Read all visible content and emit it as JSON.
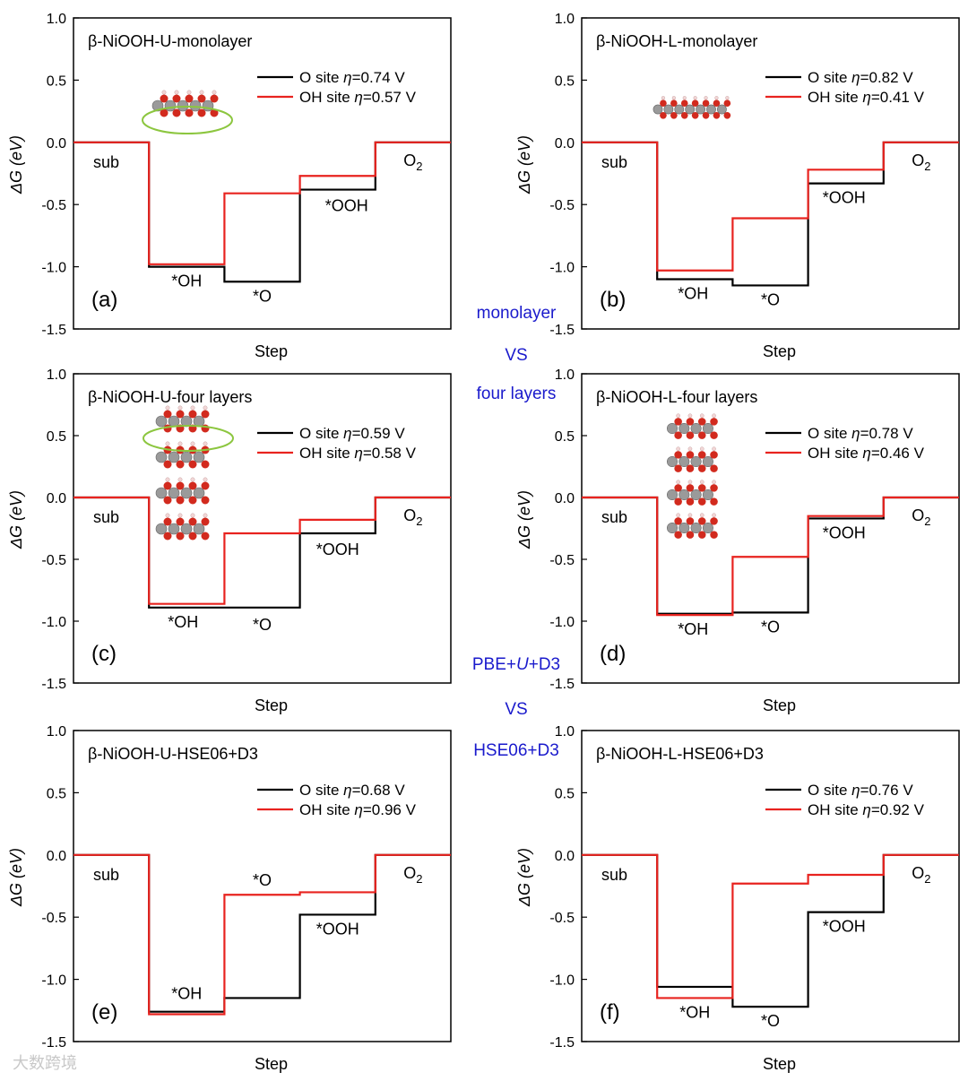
{
  "figure": {
    "center_labels": [
      "monolayer",
      "VS",
      "four layers",
      "PBE+U+D3",
      "VS",
      "HSE06+D3"
    ],
    "watermark": "大数跨境",
    "colors": {
      "o_site": "#000000",
      "oh_site": "#e8231f",
      "center_text": "#1a1acc",
      "ellipse": "#8cc63f"
    }
  },
  "chart_data": [
    {
      "type": "line",
      "panel": "(a)",
      "title": "β-NiOOH-U-monolayer",
      "xlabel": "Step",
      "ylabel": "ΔG (eV)",
      "ylim": [
        -1.5,
        1.0
      ],
      "yticks": [
        "1.0",
        "0.5",
        "0.0",
        "-0.5",
        "-1.0",
        "-1.5"
      ],
      "steps": [
        "sub",
        "*OH",
        "*O",
        "*OOH",
        "O2"
      ],
      "legend": [
        {
          "prefix": "O site ",
          "eta": "η",
          "suffix": "=0.74 V"
        },
        {
          "prefix": "OH site ",
          "eta": "η",
          "suffix": "=0.57 V"
        }
      ],
      "series": [
        {
          "name": "O site",
          "values": [
            0.0,
            -1.0,
            -1.12,
            -0.38,
            0.0
          ]
        },
        {
          "name": "OH site",
          "values": [
            0.0,
            -0.98,
            -0.41,
            -0.27,
            0.0
          ]
        }
      ]
    },
    {
      "type": "line",
      "panel": "(b)",
      "title": "β-NiOOH-L-monolayer",
      "xlabel": "Step",
      "ylabel": "ΔG (eV)",
      "ylim": [
        -1.5,
        1.0
      ],
      "yticks": [
        "1.0",
        "0.5",
        "0.0",
        "-0.5",
        "-1.0",
        "-1.5"
      ],
      "steps": [
        "sub",
        "*OH",
        "*O",
        "*OOH",
        "O2"
      ],
      "legend": [
        {
          "prefix": "O site ",
          "eta": "η",
          "suffix": "=0.82 V"
        },
        {
          "prefix": "OH site ",
          "eta": "η",
          "suffix": "=0.41 V"
        }
      ],
      "series": [
        {
          "name": "O site",
          "values": [
            0.0,
            -1.1,
            -1.15,
            -0.33,
            0.0
          ]
        },
        {
          "name": "OH site",
          "values": [
            0.0,
            -1.03,
            -0.61,
            -0.22,
            0.0
          ]
        }
      ]
    },
    {
      "type": "line",
      "panel": "(c)",
      "title": "β-NiOOH-U-four layers",
      "xlabel": "Step",
      "ylabel": "ΔG (eV)",
      "ylim": [
        -1.5,
        1.0
      ],
      "yticks": [
        "1.0",
        "0.5",
        "0.0",
        "-0.5",
        "-1.0",
        "-1.5"
      ],
      "steps": [
        "sub",
        "*OH",
        "*O",
        "*OOH",
        "O2"
      ],
      "legend": [
        {
          "prefix": "O site ",
          "eta": "η",
          "suffix": "=0.59 V"
        },
        {
          "prefix": "OH site ",
          "eta": "η",
          "suffix": "=0.58 V"
        }
      ],
      "series": [
        {
          "name": "O site",
          "values": [
            0.0,
            -0.89,
            -0.89,
            -0.29,
            0.0
          ]
        },
        {
          "name": "OH site",
          "values": [
            0.0,
            -0.86,
            -0.29,
            -0.18,
            0.0
          ]
        }
      ]
    },
    {
      "type": "line",
      "panel": "(d)",
      "title": "β-NiOOH-L-four layers",
      "xlabel": "Step",
      "ylabel": "ΔG (eV)",
      "ylim": [
        -1.5,
        1.0
      ],
      "yticks": [
        "1.0",
        "0.5",
        "0.0",
        "-0.5",
        "-1.0",
        "-1.5"
      ],
      "steps": [
        "sub",
        "*OH",
        "*O",
        "*OOH",
        "O2"
      ],
      "legend": [
        {
          "prefix": "O site ",
          "eta": "η",
          "suffix": "=0.78 V"
        },
        {
          "prefix": "OH site ",
          "eta": "η",
          "suffix": "=0.46 V"
        }
      ],
      "series": [
        {
          "name": "O site",
          "values": [
            0.0,
            -0.94,
            -0.93,
            -0.17,
            0.0
          ]
        },
        {
          "name": "OH site",
          "values": [
            0.0,
            -0.95,
            -0.48,
            -0.15,
            0.0
          ]
        }
      ]
    },
    {
      "type": "line",
      "panel": "(e)",
      "title": "β-NiOOH-U-HSE06+D3",
      "xlabel": "Step",
      "ylabel": "ΔG (eV)",
      "ylim": [
        -1.5,
        1.0
      ],
      "yticks": [
        "1.0",
        "0.5",
        "0.0",
        "-0.5",
        "-1.0",
        "-1.5"
      ],
      "steps": [
        "sub",
        "*OH",
        "*O",
        "*OOH",
        "O2"
      ],
      "legend": [
        {
          "prefix": "O site ",
          "eta": "η",
          "suffix": "=0.68 V"
        },
        {
          "prefix": "OH site ",
          "eta": "η",
          "suffix": "=0.96 V"
        }
      ],
      "series": [
        {
          "name": "O site",
          "values": [
            0.0,
            -1.26,
            -1.15,
            -0.48,
            0.0
          ]
        },
        {
          "name": "OH site",
          "values": [
            0.0,
            -1.28,
            -0.32,
            -0.3,
            0.0
          ]
        }
      ]
    },
    {
      "type": "line",
      "panel": "(f)",
      "title": "β-NiOOH-L-HSE06+D3",
      "xlabel": "Step",
      "ylabel": "ΔG (eV)",
      "ylim": [
        -1.5,
        1.0
      ],
      "yticks": [
        "1.0",
        "0.5",
        "0.0",
        "-0.5",
        "-1.0",
        "-1.5"
      ],
      "steps": [
        "sub",
        "*OH",
        "*O",
        "*OOH",
        "O2"
      ],
      "legend": [
        {
          "prefix": "O site ",
          "eta": "η",
          "suffix": "=0.76 V"
        },
        {
          "prefix": "OH site ",
          "eta": "η",
          "suffix": "=0.92 V"
        }
      ],
      "series": [
        {
          "name": "O site",
          "values": [
            0.0,
            -1.06,
            -1.22,
            -0.46,
            0.0
          ]
        },
        {
          "name": "OH site",
          "values": [
            0.0,
            -1.15,
            -0.23,
            -0.16,
            0.0
          ]
        }
      ]
    }
  ]
}
